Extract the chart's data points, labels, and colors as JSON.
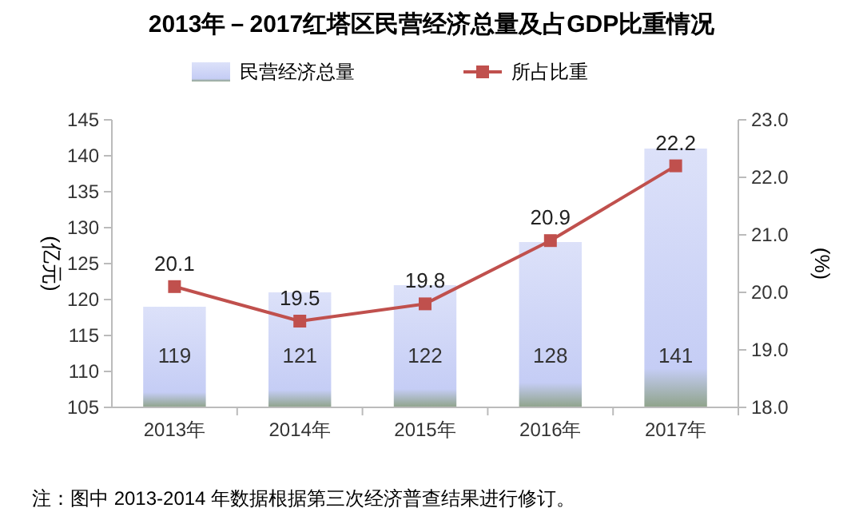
{
  "chart_data": {
    "type": "bar",
    "title": "2013年－2017红塔区民营经济总量及占GDP比重情况",
    "categories": [
      "2013年",
      "2014年",
      "2015年",
      "2016年",
      "2017年"
    ],
    "series": [
      {
        "name": "民营经济总量",
        "color": "#c5cdf5",
        "values": [
          119,
          121,
          122,
          128,
          141
        ]
      },
      {
        "name": "所占比重",
        "type": "line",
        "axis": "y2",
        "color": "#c0504d",
        "values": [
          20.1,
          19.5,
          19.8,
          20.9,
          22.2
        ]
      }
    ],
    "ylabel": "(亿元)",
    "y2label": "(%)",
    "ylim": [
      105,
      145
    ],
    "yticks": [
      105,
      110,
      115,
      120,
      125,
      130,
      135,
      140,
      145
    ],
    "y2lim": [
      18,
      23
    ],
    "y2ticks": [
      {
        "value": 18,
        "label": "18.0"
      },
      {
        "value": 19,
        "label": "19.0"
      },
      {
        "value": 20,
        "label": "20.0"
      },
      {
        "value": 21,
        "label": "21.0"
      },
      {
        "value": 22,
        "label": "22.0"
      },
      {
        "value": 23,
        "label": "23.0"
      }
    ],
    "data_labels": true,
    "legend": "top",
    "marker": "square",
    "grid": false,
    "annotations": [
      "注：图中 2013-2014 年数据根据第三次经济普查结果进行修订。"
    ]
  }
}
